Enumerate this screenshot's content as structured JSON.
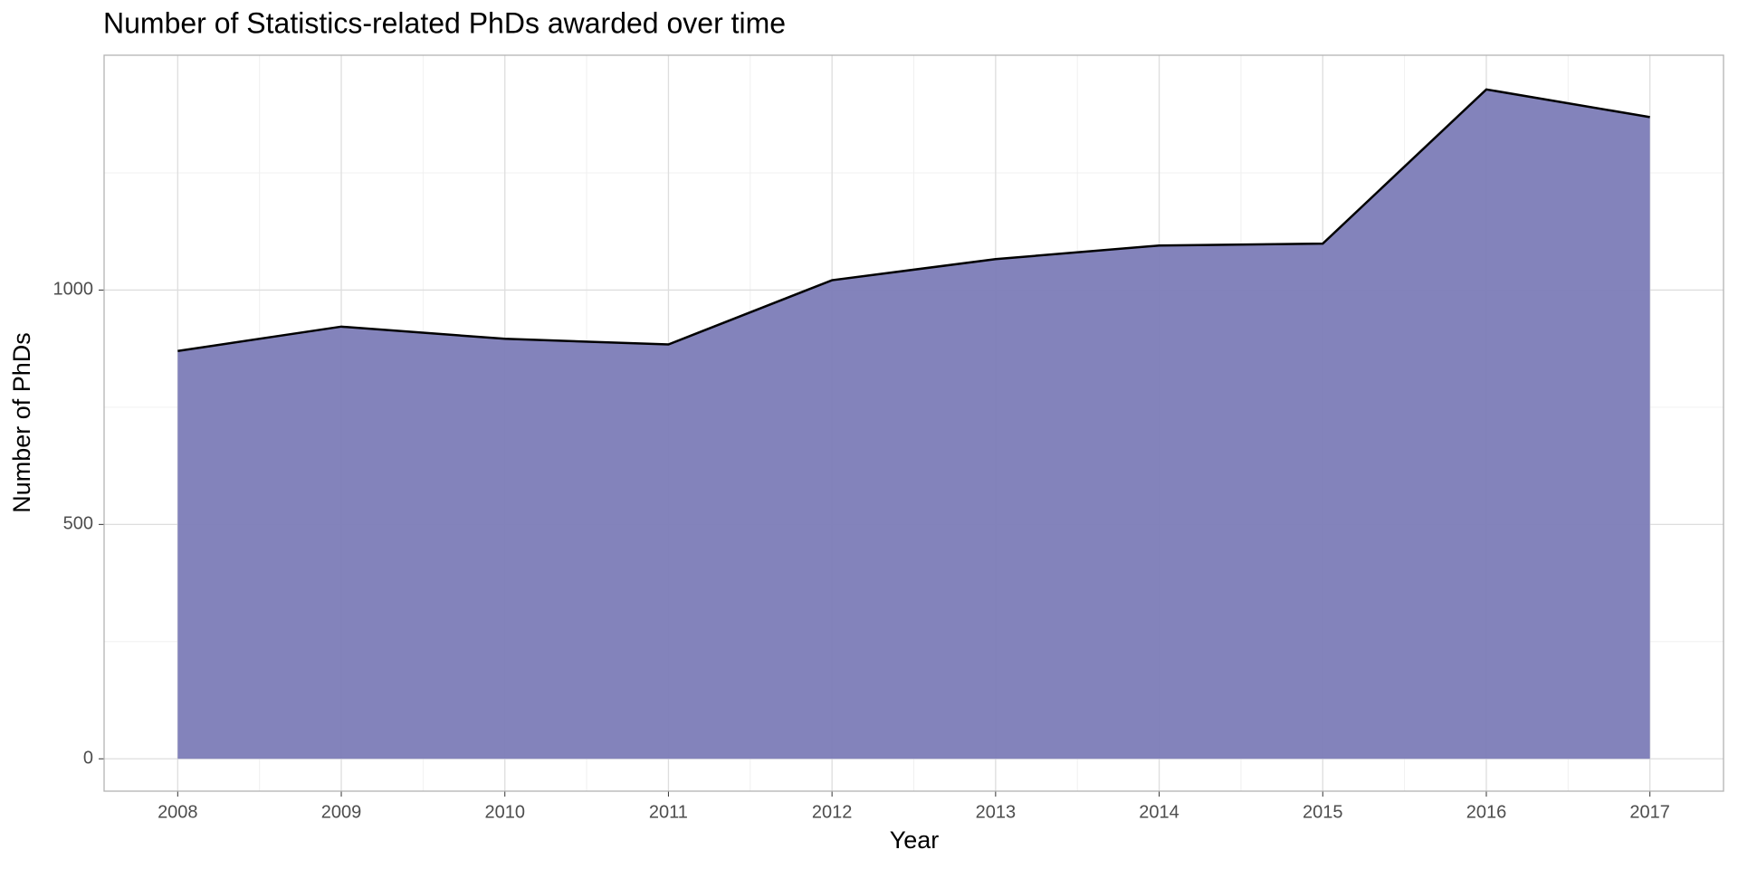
{
  "chart_data": {
    "type": "area",
    "title": "Number of Statistics-related PhDs awarded over time",
    "x_label": "Year",
    "y_label": "Number of PhDs",
    "x": [
      2008,
      2009,
      2010,
      2011,
      2012,
      2013,
      2014,
      2015,
      2016,
      2017
    ],
    "values": [
      870,
      922,
      896,
      884,
      1021,
      1066,
      1095,
      1099,
      1428,
      1369
    ],
    "color": "#7f7fb9",
    "line_color": "#000000",
    "xlim": [
      2007.55,
      2017.45
    ],
    "xticks": [
      2008,
      2009,
      2010,
      2011,
      2012,
      2013,
      2014,
      2015,
      2016,
      2017
    ],
    "ylim": [
      -69,
      1501
    ],
    "yticks": [
      0,
      500,
      1000
    ],
    "grid": true
  }
}
